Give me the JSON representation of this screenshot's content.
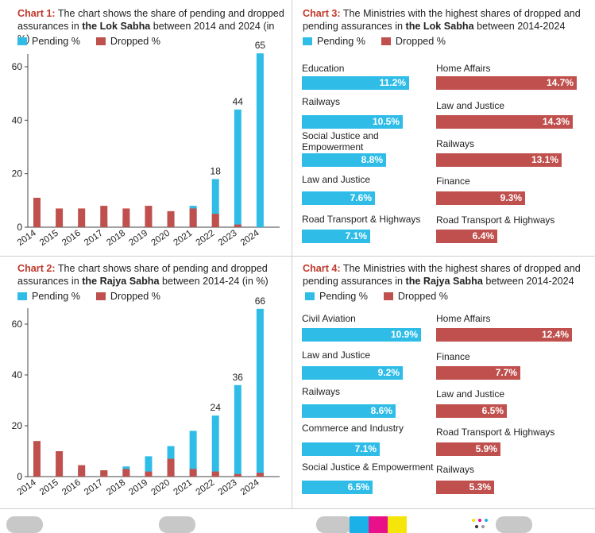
{
  "colors": {
    "pending": "#2fbde8",
    "dropped": "#c0504d",
    "label": "#c0392b"
  },
  "legend": {
    "pending": "Pending %",
    "dropped": "Dropped %"
  },
  "captions": {
    "c1": {
      "label": "Chart 1:",
      "pre": " The chart shows the share of pending and dropped assurances in ",
      "highlight": "the Lok Sabha",
      "post": " between 2014 and 2024 (in %)"
    },
    "c2": {
      "label": "Chart 2:",
      "pre": " The chart shows share of pending and dropped assurances in ",
      "highlight": "the Rajya Sabha",
      "post": " between 2014-24 (in %)"
    },
    "c3": {
      "label": "Chart 3:",
      "pre": " The Ministries with the highest shares of dropped and pending assurances in ",
      "highlight": "the Lok Sabha",
      "post": " between 2014-2024"
    },
    "c4": {
      "label": "Chart 4:",
      "pre": " The Ministries with the highest shares of dropped and pending assurances in ",
      "highlight": "the Rajya Sabha",
      "post": " between 2014-2024"
    }
  },
  "chart_data": [
    {
      "type": "bar",
      "title": "Chart 1: The chart shows the share of pending and dropped assurances in the Lok Sabha between 2014 and 2024 (in %)",
      "categories": [
        "2014",
        "2015",
        "2016",
        "2017",
        "2018",
        "2019",
        "2020",
        "2021",
        "2022",
        "2023",
        "2024"
      ],
      "series": [
        {
          "name": "Pending %",
          "values": [
            0,
            1,
            1,
            2,
            3,
            3,
            5,
            8,
            18,
            44,
            65
          ]
        },
        {
          "name": "Dropped %",
          "values": [
            11,
            7,
            7,
            8,
            7,
            8,
            6,
            7,
            5,
            1,
            0
          ]
        }
      ],
      "labeled_values": {
        "2022": "18",
        "2023": "44",
        "2024": "65"
      },
      "yticks": [
        "0",
        "20",
        "40",
        "60"
      ],
      "ylim": [
        0,
        65
      ]
    },
    {
      "type": "bar",
      "title": "Chart 2: The chart shows share of pending and dropped assurances in the Rajya Sabha between 2014-24 (in %)",
      "categories": [
        "2014",
        "2015",
        "2016",
        "2017",
        "2018",
        "2019",
        "2020",
        "2021",
        "2022",
        "2023",
        "2024"
      ],
      "series": [
        {
          "name": "Pending %",
          "values": [
            1.5,
            2.5,
            3,
            2,
            4,
            8,
            12,
            18,
            24,
            36,
            66
          ]
        },
        {
          "name": "Dropped %",
          "values": [
            14,
            10,
            4.5,
            2.5,
            3,
            2,
            7,
            3,
            2,
            1,
            1.5
          ]
        }
      ],
      "labeled_values": {
        "2022": "24",
        "2023": "36",
        "2024": "66"
      },
      "yticks": [
        "0",
        "20",
        "40",
        "60"
      ],
      "ylim": [
        0,
        66
      ]
    },
    {
      "type": "bar",
      "title": "Chart 3: The Ministries with the highest shares of dropped and pending assurances in the Lok Sabha between 2014-2024",
      "pending": [
        {
          "name": "Education",
          "value": 11.2,
          "label": "11.2%"
        },
        {
          "name": "Railways",
          "value": 10.5,
          "label": "10.5%"
        },
        {
          "name": "Social Justice and Empowerment",
          "value": 8.8,
          "label": "8.8%"
        },
        {
          "name": "Law and Justice",
          "value": 7.6,
          "label": "7.6%"
        },
        {
          "name": "Road Transport & Highways",
          "value": 7.1,
          "label": "7.1%"
        }
      ],
      "dropped": [
        {
          "name": "Home Affairs",
          "value": 14.7,
          "label": "14.7%"
        },
        {
          "name": "Law and Justice",
          "value": 14.3,
          "label": "14.3%"
        },
        {
          "name": "Railways",
          "value": 13.1,
          "label": "13.1%"
        },
        {
          "name": "Finance",
          "value": 9.3,
          "label": "9.3%"
        },
        {
          "name": "Road Transport & Highways",
          "value": 6.4,
          "label": "6.4%"
        }
      ]
    },
    {
      "type": "bar",
      "title": "Chart 4: The Ministries with the highest shares of dropped and pending assurances in the Rajya Sabha between 2014-2024",
      "pending": [
        {
          "name": "Civil Aviation",
          "value": 10.9,
          "label": "10.9%"
        },
        {
          "name": "Law and Justice",
          "value": 9.2,
          "label": "9.2%"
        },
        {
          "name": "Railways",
          "value": 8.6,
          "label": "8.6%"
        },
        {
          "name": "Commerce and Industry",
          "value": 7.1,
          "label": "7.1%"
        },
        {
          "name": "Social Justice & Empowerment",
          "value": 6.5,
          "label": "6.5%"
        }
      ],
      "dropped": [
        {
          "name": "Home Affairs",
          "value": 12.4,
          "label": "12.4%"
        },
        {
          "name": "Finance",
          "value": 7.7,
          "label": "7.7%"
        },
        {
          "name": "Law and Justice",
          "value": 6.5,
          "label": "6.5%"
        },
        {
          "name": "Road Transport & Highways",
          "value": 5.9,
          "label": "5.9%"
        },
        {
          "name": "Railways",
          "value": 5.3,
          "label": "5.3%"
        }
      ]
    }
  ]
}
